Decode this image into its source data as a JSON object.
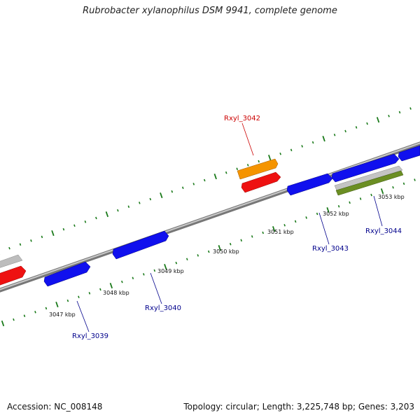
{
  "title": "Rubrobacter xylanophilus DSM 9941, complete genome",
  "footer": {
    "accession": "Accession: NC_008148",
    "summary": "Topology: circular; Length: 3,225,748 bp; Genes: 3,203"
  },
  "kbp_labels": [
    "3047 kbp",
    "3048 kbp",
    "3049 kbp",
    "3050 kbp",
    "3051 kbp",
    "3052 kbp",
    "3053 kbp"
  ],
  "gene_labels": [
    {
      "name": "Rxyl_3039",
      "color": "#00008b"
    },
    {
      "name": "Rxyl_3040",
      "color": "#00008b"
    },
    {
      "name": "Rxyl_3042",
      "color": "#cc0000"
    },
    {
      "name": "Rxyl_3043",
      "color": "#00008b"
    },
    {
      "name": "Rxyl_3044",
      "color": "#00008b"
    }
  ],
  "colors": {
    "backbone": "#888888",
    "tick": "#1a7a1a",
    "cds_blue": "#1010ee",
    "cds_red": "#ee1111",
    "cds_orange": "#f59400",
    "cds_gray": "#b8b8b8",
    "cds_green": "#6b8e23"
  }
}
